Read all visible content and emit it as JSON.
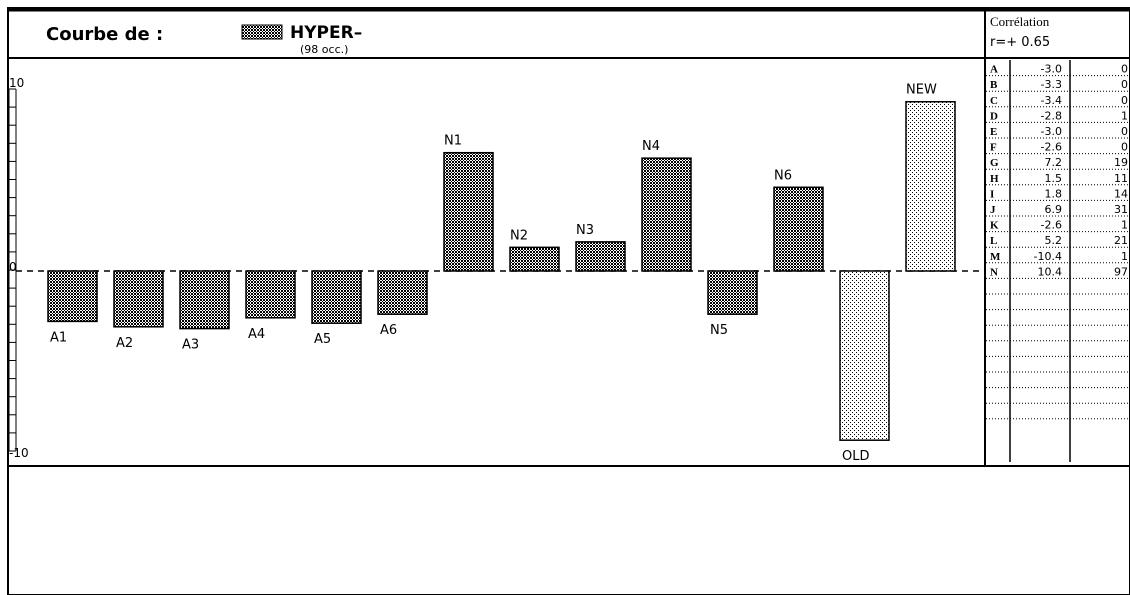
{
  "header": {
    "prefix": "Courbe de :",
    "term": "HYPER–",
    "occurrences": "(98 occ.)"
  },
  "correlation": {
    "title": "Corrélation",
    "value": "r=+ 0.65"
  },
  "chart_data": {
    "type": "bar",
    "title": "HYPER–",
    "categories": [
      "A1",
      "A2",
      "A3",
      "A4",
      "A5",
      "A6",
      "N1",
      "N2",
      "N3",
      "N4",
      "N5",
      "N6",
      "OLD",
      "NEW"
    ],
    "values": [
      -2.8,
      -3.1,
      -3.2,
      -2.6,
      -2.9,
      -2.4,
      6.5,
      1.3,
      1.6,
      6.2,
      -2.4,
      4.6,
      -9.4,
      9.3
    ],
    "ylim": [
      -10,
      10
    ],
    "y_ticks": [
      "10",
      "0",
      "-10"
    ],
    "label_positions": [
      "below",
      "below",
      "below",
      "below",
      "below",
      "below",
      "above",
      "above",
      "above",
      "above",
      "below",
      "above",
      "below",
      "above"
    ],
    "patterns": [
      "dense",
      "dense",
      "dense",
      "dense",
      "dense",
      "dense",
      "dense",
      "dense",
      "dense",
      "dense",
      "dense",
      "dense",
      "light",
      "light"
    ]
  },
  "side_table": {
    "rows": [
      {
        "letter": "A",
        "value": "-3.0",
        "count": "0"
      },
      {
        "letter": "B",
        "value": "-3.3",
        "count": "0"
      },
      {
        "letter": "C",
        "value": "-3.4",
        "count": "0"
      },
      {
        "letter": "D",
        "value": "-2.8",
        "count": "1"
      },
      {
        "letter": "E",
        "value": "-3.0",
        "count": "0"
      },
      {
        "letter": "F",
        "value": "-2.6",
        "count": "0"
      },
      {
        "letter": "G",
        "value": "7.2",
        "count": "19"
      },
      {
        "letter": "H",
        "value": "1.5",
        "count": "11"
      },
      {
        "letter": "I",
        "value": "1.8",
        "count": "14"
      },
      {
        "letter": "J",
        "value": "6.9",
        "count": "31"
      },
      {
        "letter": "K",
        "value": "-2.6",
        "count": "1"
      },
      {
        "letter": "L",
        "value": "5.2",
        "count": "21"
      },
      {
        "letter": "M",
        "value": "-10.4",
        "count": "1"
      },
      {
        "letter": "N",
        "value": "10.4",
        "count": "97"
      }
    ],
    "empty_rows": 9
  }
}
